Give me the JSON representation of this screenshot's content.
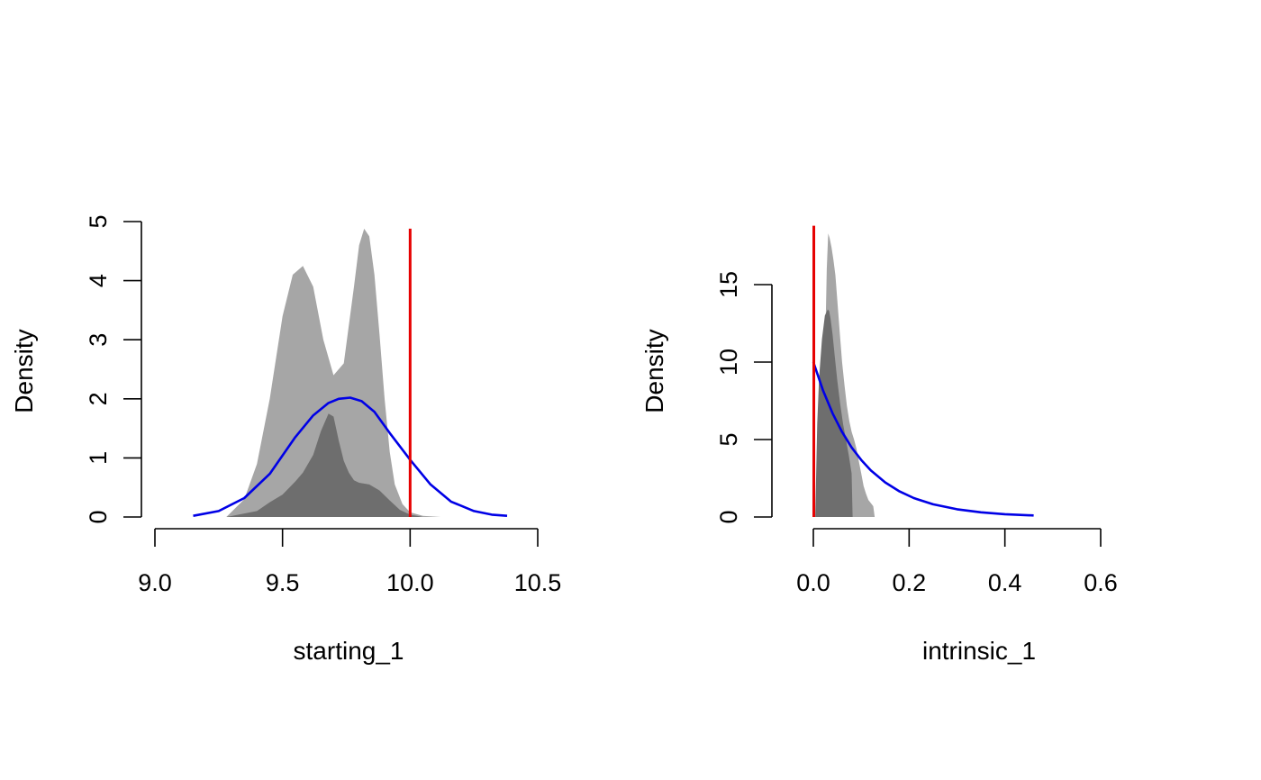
{
  "colors": {
    "posterior_fill_light": "#a6a6a6",
    "posterior_fill_dark": "#6e6e6e",
    "prior_line": "#0000e6",
    "true_value_line": "#e60000",
    "axis": "#000000",
    "background": "#ffffff"
  },
  "chart_data": [
    {
      "type": "area",
      "title": "",
      "xlabel": "starting_1",
      "ylabel": "Density",
      "xlim": [
        9.0,
        10.5
      ],
      "ylim": [
        0,
        5
      ],
      "x_ticks": [
        9.0,
        9.5,
        10.0,
        10.5
      ],
      "x_tick_labels": [
        "9.0",
        "9.5",
        "10.0",
        "10.5"
      ],
      "y_ticks": [
        0,
        1,
        2,
        3,
        4,
        5
      ],
      "y_tick_labels": [
        "0",
        "1",
        "2",
        "3",
        "4",
        "5"
      ],
      "grid": false,
      "series": [
        {
          "kind": "density_fill",
          "shade": "light",
          "x": [
            9.28,
            9.35,
            9.4,
            9.45,
            9.5,
            9.54,
            9.58,
            9.62,
            9.66,
            9.7,
            9.74,
            9.78,
            9.8,
            9.82,
            9.84,
            9.86,
            9.88,
            9.9,
            9.92,
            9.94,
            9.97,
            10.0,
            10.05,
            10.12,
            10.2
          ],
          "y": [
            0.0,
            0.3,
            0.9,
            2.0,
            3.4,
            4.1,
            4.25,
            3.9,
            3.0,
            2.4,
            2.6,
            3.9,
            4.6,
            4.88,
            4.75,
            4.1,
            3.1,
            2.0,
            1.1,
            0.55,
            0.22,
            0.08,
            0.02,
            0.0,
            0.0
          ]
        },
        {
          "kind": "density_fill",
          "shade": "dark",
          "x": [
            9.28,
            9.4,
            9.45,
            9.5,
            9.55,
            9.58,
            9.62,
            9.65,
            9.68,
            9.7,
            9.72,
            9.74,
            9.76,
            9.78,
            9.8,
            9.84,
            9.88,
            9.92,
            9.96,
            10.0,
            10.05
          ],
          "y": [
            0.0,
            0.1,
            0.25,
            0.38,
            0.6,
            0.75,
            1.05,
            1.45,
            1.75,
            1.7,
            1.3,
            0.95,
            0.75,
            0.62,
            0.58,
            0.55,
            0.45,
            0.28,
            0.12,
            0.04,
            0.0
          ]
        },
        {
          "kind": "prior_line",
          "color": "#0000e6",
          "x": [
            9.15,
            9.25,
            9.35,
            9.45,
            9.55,
            9.62,
            9.68,
            9.72,
            9.765,
            9.81,
            9.86,
            9.92,
            10.0,
            10.08,
            10.16,
            10.25,
            10.32,
            10.38
          ],
          "y": [
            0.02,
            0.1,
            0.32,
            0.73,
            1.35,
            1.72,
            1.93,
            2.0,
            2.02,
            1.96,
            1.78,
            1.42,
            0.97,
            0.55,
            0.26,
            0.1,
            0.04,
            0.02
          ]
        },
        {
          "kind": "true_value",
          "color": "#e60000",
          "x": 10.0,
          "y_range": [
            0,
            4.88
          ]
        }
      ]
    },
    {
      "type": "area",
      "title": "",
      "xlabel": "intrinsic_1",
      "ylabel": "Density",
      "xlim": [
        0.0,
        0.6
      ],
      "ylim": [
        0,
        15
      ],
      "x_ticks": [
        0.0,
        0.2,
        0.4,
        0.6
      ],
      "x_tick_labels": [
        "0.0",
        "0.2",
        "0.4",
        "0.6"
      ],
      "y_ticks": [
        0,
        5,
        10,
        15
      ],
      "y_tick_labels": [
        "0",
        "5",
        "10",
        "15"
      ],
      "grid": false,
      "series": [
        {
          "kind": "density_fill",
          "shade": "light",
          "x": [
            0.018,
            0.02,
            0.024,
            0.028,
            0.031,
            0.034,
            0.038,
            0.042,
            0.046,
            0.05,
            0.055,
            0.06,
            0.065,
            0.07,
            0.075,
            0.08,
            0.085,
            0.09,
            0.095,
            0.1,
            0.105,
            0.11,
            0.115,
            0.12,
            0.125,
            0.128
          ],
          "y": [
            0.0,
            3.0,
            10.0,
            16.0,
            18.3,
            18.0,
            17.4,
            16.6,
            15.6,
            14.0,
            12.0,
            10.0,
            8.5,
            7.2,
            6.2,
            5.5,
            5.0,
            4.4,
            3.6,
            2.8,
            2.0,
            1.5,
            1.1,
            0.9,
            0.7,
            0.0
          ]
        },
        {
          "kind": "density_fill",
          "shade": "dark",
          "x": [
            0.004,
            0.008,
            0.012,
            0.018,
            0.024,
            0.03,
            0.033,
            0.036,
            0.04,
            0.045,
            0.05,
            0.056,
            0.062,
            0.068,
            0.074,
            0.08,
            0.082
          ],
          "y": [
            0.0,
            6.0,
            9.0,
            11.5,
            13.0,
            13.4,
            13.3,
            12.8,
            11.8,
            10.3,
            8.8,
            7.3,
            6.0,
            5.0,
            4.0,
            2.8,
            0.0
          ]
        },
        {
          "kind": "prior_line",
          "color": "#0000e6",
          "x": [
            0.0,
            0.02,
            0.04,
            0.06,
            0.08,
            0.1,
            0.12,
            0.15,
            0.18,
            0.21,
            0.25,
            0.3,
            0.35,
            0.4,
            0.46
          ],
          "y": [
            10.0,
            8.19,
            6.7,
            5.49,
            4.49,
            3.68,
            3.01,
            2.23,
            1.65,
            1.22,
            0.82,
            0.5,
            0.3,
            0.18,
            0.1
          ]
        },
        {
          "kind": "true_value",
          "color": "#e60000",
          "x": 0.001,
          "y_range": [
            0,
            18.8
          ]
        }
      ]
    }
  ]
}
